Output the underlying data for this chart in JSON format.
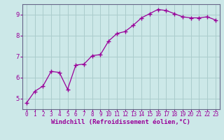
{
  "x": [
    0,
    1,
    2,
    3,
    4,
    5,
    6,
    7,
    8,
    9,
    10,
    11,
    12,
    13,
    14,
    15,
    16,
    17,
    18,
    19,
    20,
    21,
    22,
    23
  ],
  "y": [
    4.8,
    5.35,
    5.6,
    6.3,
    6.25,
    5.45,
    6.6,
    6.65,
    7.05,
    7.1,
    7.75,
    8.1,
    8.2,
    8.5,
    8.85,
    9.05,
    9.25,
    9.2,
    9.05,
    8.9,
    8.85,
    8.85,
    8.9,
    8.75
  ],
  "line_color": "#990099",
  "marker": "+",
  "marker_size": 4,
  "bg_color": "#cce8e8",
  "grid_color": "#aacccc",
  "xlabel": "Windchill (Refroidissement éolien,°C)",
  "ylim": [
    4.5,
    9.5
  ],
  "xlim": [
    -0.5,
    23.5
  ],
  "yticks": [
    5,
    6,
    7,
    8,
    9
  ],
  "xticks": [
    0,
    1,
    2,
    3,
    4,
    5,
    6,
    7,
    8,
    9,
    10,
    11,
    12,
    13,
    14,
    15,
    16,
    17,
    18,
    19,
    20,
    21,
    22,
    23
  ],
  "tick_color": "#990099",
  "label_color": "#990099",
  "tick_fontsize": 5.5,
  "xlabel_fontsize": 6.5,
  "spine_color": "#666688"
}
